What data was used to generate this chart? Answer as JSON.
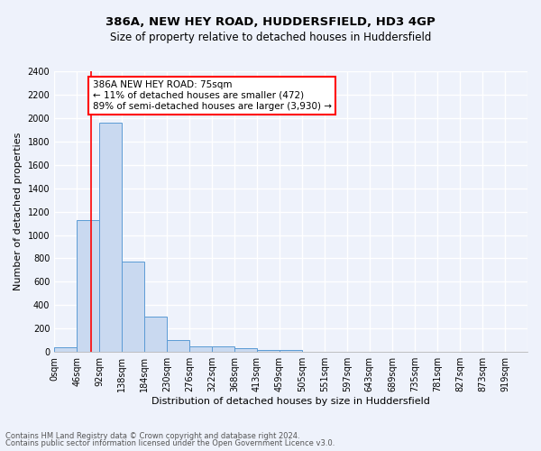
{
  "title1": "386A, NEW HEY ROAD, HUDDERSFIELD, HD3 4GP",
  "title2": "Size of property relative to detached houses in Huddersfield",
  "xlabel": "Distribution of detached houses by size in Huddersfield",
  "ylabel": "Number of detached properties",
  "bar_values": [
    40,
    1130,
    1960,
    770,
    300,
    100,
    50,
    45,
    35,
    20,
    20,
    0,
    0,
    0,
    0,
    0,
    0,
    0,
    0,
    0
  ],
  "bin_labels": [
    "0sqm",
    "46sqm",
    "92sqm",
    "138sqm",
    "184sqm",
    "230sqm",
    "276sqm",
    "322sqm",
    "368sqm",
    "413sqm",
    "459sqm",
    "505sqm",
    "551sqm",
    "597sqm",
    "643sqm",
    "689sqm",
    "735sqm",
    "781sqm",
    "827sqm",
    "873sqm",
    "919sqm"
  ],
  "bin_edges": [
    0,
    46,
    92,
    138,
    184,
    230,
    276,
    322,
    368,
    413,
    459,
    505,
    551,
    597,
    643,
    689,
    735,
    781,
    827,
    873,
    919
  ],
  "bin_width": 46,
  "ylim": [
    0,
    2400
  ],
  "yticks": [
    0,
    200,
    400,
    600,
    800,
    1000,
    1200,
    1400,
    1600,
    1800,
    2000,
    2200,
    2400
  ],
  "bar_color": "#c9d9f0",
  "bar_edge_color": "#5b9bd5",
  "red_line_x": 75,
  "annotation_text": "386A NEW HEY ROAD: 75sqm\n← 11% of detached houses are smaller (472)\n89% of semi-detached houses are larger (3,930) →",
  "annotation_box_color": "white",
  "annotation_box_edge": "red",
  "footer1": "Contains HM Land Registry data © Crown copyright and database right 2024.",
  "footer2": "Contains public sector information licensed under the Open Government Licence v3.0.",
  "background_color": "#eef2fb",
  "grid_color": "white",
  "title1_fontsize": 9.5,
  "title2_fontsize": 8.5,
  "xlabel_fontsize": 8,
  "ylabel_fontsize": 8,
  "tick_fontsize": 7,
  "footer_fontsize": 6,
  "annotation_fontsize": 7.5
}
